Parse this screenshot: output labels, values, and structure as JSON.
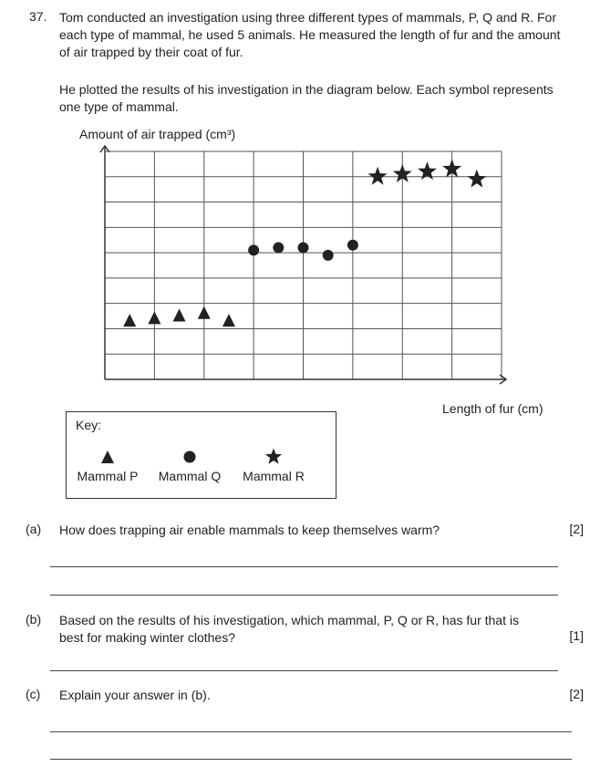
{
  "question": {
    "number": "37.",
    "intro": "Tom conducted an investigation using three different types of mammals, P, Q and R. For each type of mammal, he used 5 animals. He measured the length of fur and the amount of air trapped by their coat of fur.",
    "plot_note": "He plotted the results of his investigation in the diagram below. Each symbol represents one type of mammal."
  },
  "chart_data": {
    "type": "scatter",
    "ylabel": "Amount of air trapped (cm³)",
    "xlabel": "Length of fur (cm)",
    "grid": true,
    "x_range": [
      0,
      8
    ],
    "y_range": [
      0,
      9
    ],
    "series": [
      {
        "name": "Mammal P",
        "marker": "triangle",
        "points": [
          [
            0.5,
            2.3
          ],
          [
            1.0,
            2.4
          ],
          [
            1.5,
            2.5
          ],
          [
            2.0,
            2.6
          ],
          [
            2.5,
            2.3
          ]
        ]
      },
      {
        "name": "Mammal Q",
        "marker": "circle",
        "points": [
          [
            3.0,
            5.1
          ],
          [
            3.5,
            5.2
          ],
          [
            4.0,
            5.2
          ],
          [
            4.5,
            4.9
          ],
          [
            5.0,
            5.3
          ]
        ]
      },
      {
        "name": "Mammal R",
        "marker": "star",
        "points": [
          [
            5.5,
            8.0
          ],
          [
            6.0,
            8.1
          ],
          [
            6.5,
            8.2
          ],
          [
            7.0,
            8.3
          ],
          [
            7.5,
            7.9
          ]
        ]
      }
    ]
  },
  "key": {
    "title": "Key:",
    "items": [
      {
        "label": "Mammal P",
        "icon": "triangle-icon"
      },
      {
        "label": "Mammal Q",
        "icon": "circle-icon"
      },
      {
        "label": "Mammal R",
        "icon": "star-icon"
      }
    ]
  },
  "parts": [
    {
      "label": "(a)",
      "text": "How does trapping air enable mammals to keep themselves warm?",
      "marks": "[2]"
    },
    {
      "label": "(b)",
      "text": "Based on the results of his investigation, which mammal, P, Q or R, has fur that is best for making winter clothes?",
      "marks": "[1]"
    },
    {
      "label": "(c)",
      "text": "Explain your answer in (b).",
      "marks": "[2]"
    }
  ]
}
